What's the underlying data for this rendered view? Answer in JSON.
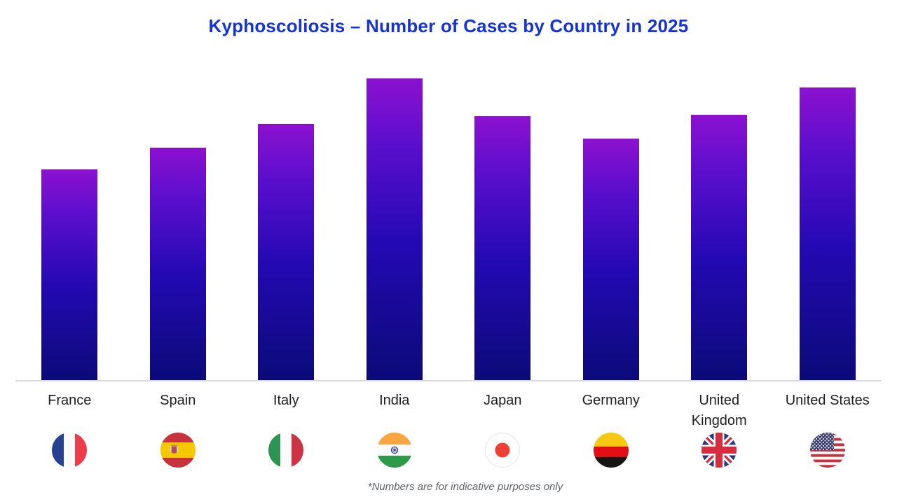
{
  "title": "Kyphoscoliosis – Number of Cases by Country in 2025",
  "footnote": "*Numbers are for indicative purposes only",
  "colors": {
    "title_text": "#1634D6",
    "bar_gradient_top": "#8C11CF",
    "bar_gradient_bottom": "#0B0A78",
    "axis_line": "#D9DADE",
    "label_text": "#1E1E1E",
    "footnote_text": "#5F6368"
  },
  "chart_data": {
    "type": "bar",
    "title": "Kyphoscoliosis – Number of Cases by Country in 2025",
    "categories": [
      "France",
      "Spain",
      "Italy",
      "India",
      "Japan",
      "Germany",
      "United Kingdom",
      "United States"
    ],
    "values": [
      70,
      77,
      85,
      100,
      87.5,
      80,
      88,
      97
    ],
    "value_note": "No y-axis or data labels shown; values estimated from bar heights, normalized to India = 100",
    "xlabel": "",
    "ylabel": "",
    "ylim": [
      0,
      100
    ],
    "grid": false,
    "legend": false,
    "bar_style": "vertical gradient purple-to-navy"
  },
  "countries": [
    {
      "label": "France",
      "flag_icon": "france-flag-icon",
      "value": 70
    },
    {
      "label": "Spain",
      "flag_icon": "spain-flag-icon",
      "value": 77
    },
    {
      "label": "Italy",
      "flag_icon": "italy-flag-icon",
      "value": 85
    },
    {
      "label": "India",
      "flag_icon": "india-flag-icon",
      "value": 100
    },
    {
      "label": "Japan",
      "flag_icon": "japan-flag-icon",
      "value": 87.5
    },
    {
      "label": "Germany",
      "flag_icon": "germany-flag-icon",
      "value": 80
    },
    {
      "label": "United\nKingdom",
      "flag_icon": "uk-flag-icon",
      "value": 88
    },
    {
      "label": "United States",
      "flag_icon": "us-flag-icon",
      "value": 97
    }
  ]
}
